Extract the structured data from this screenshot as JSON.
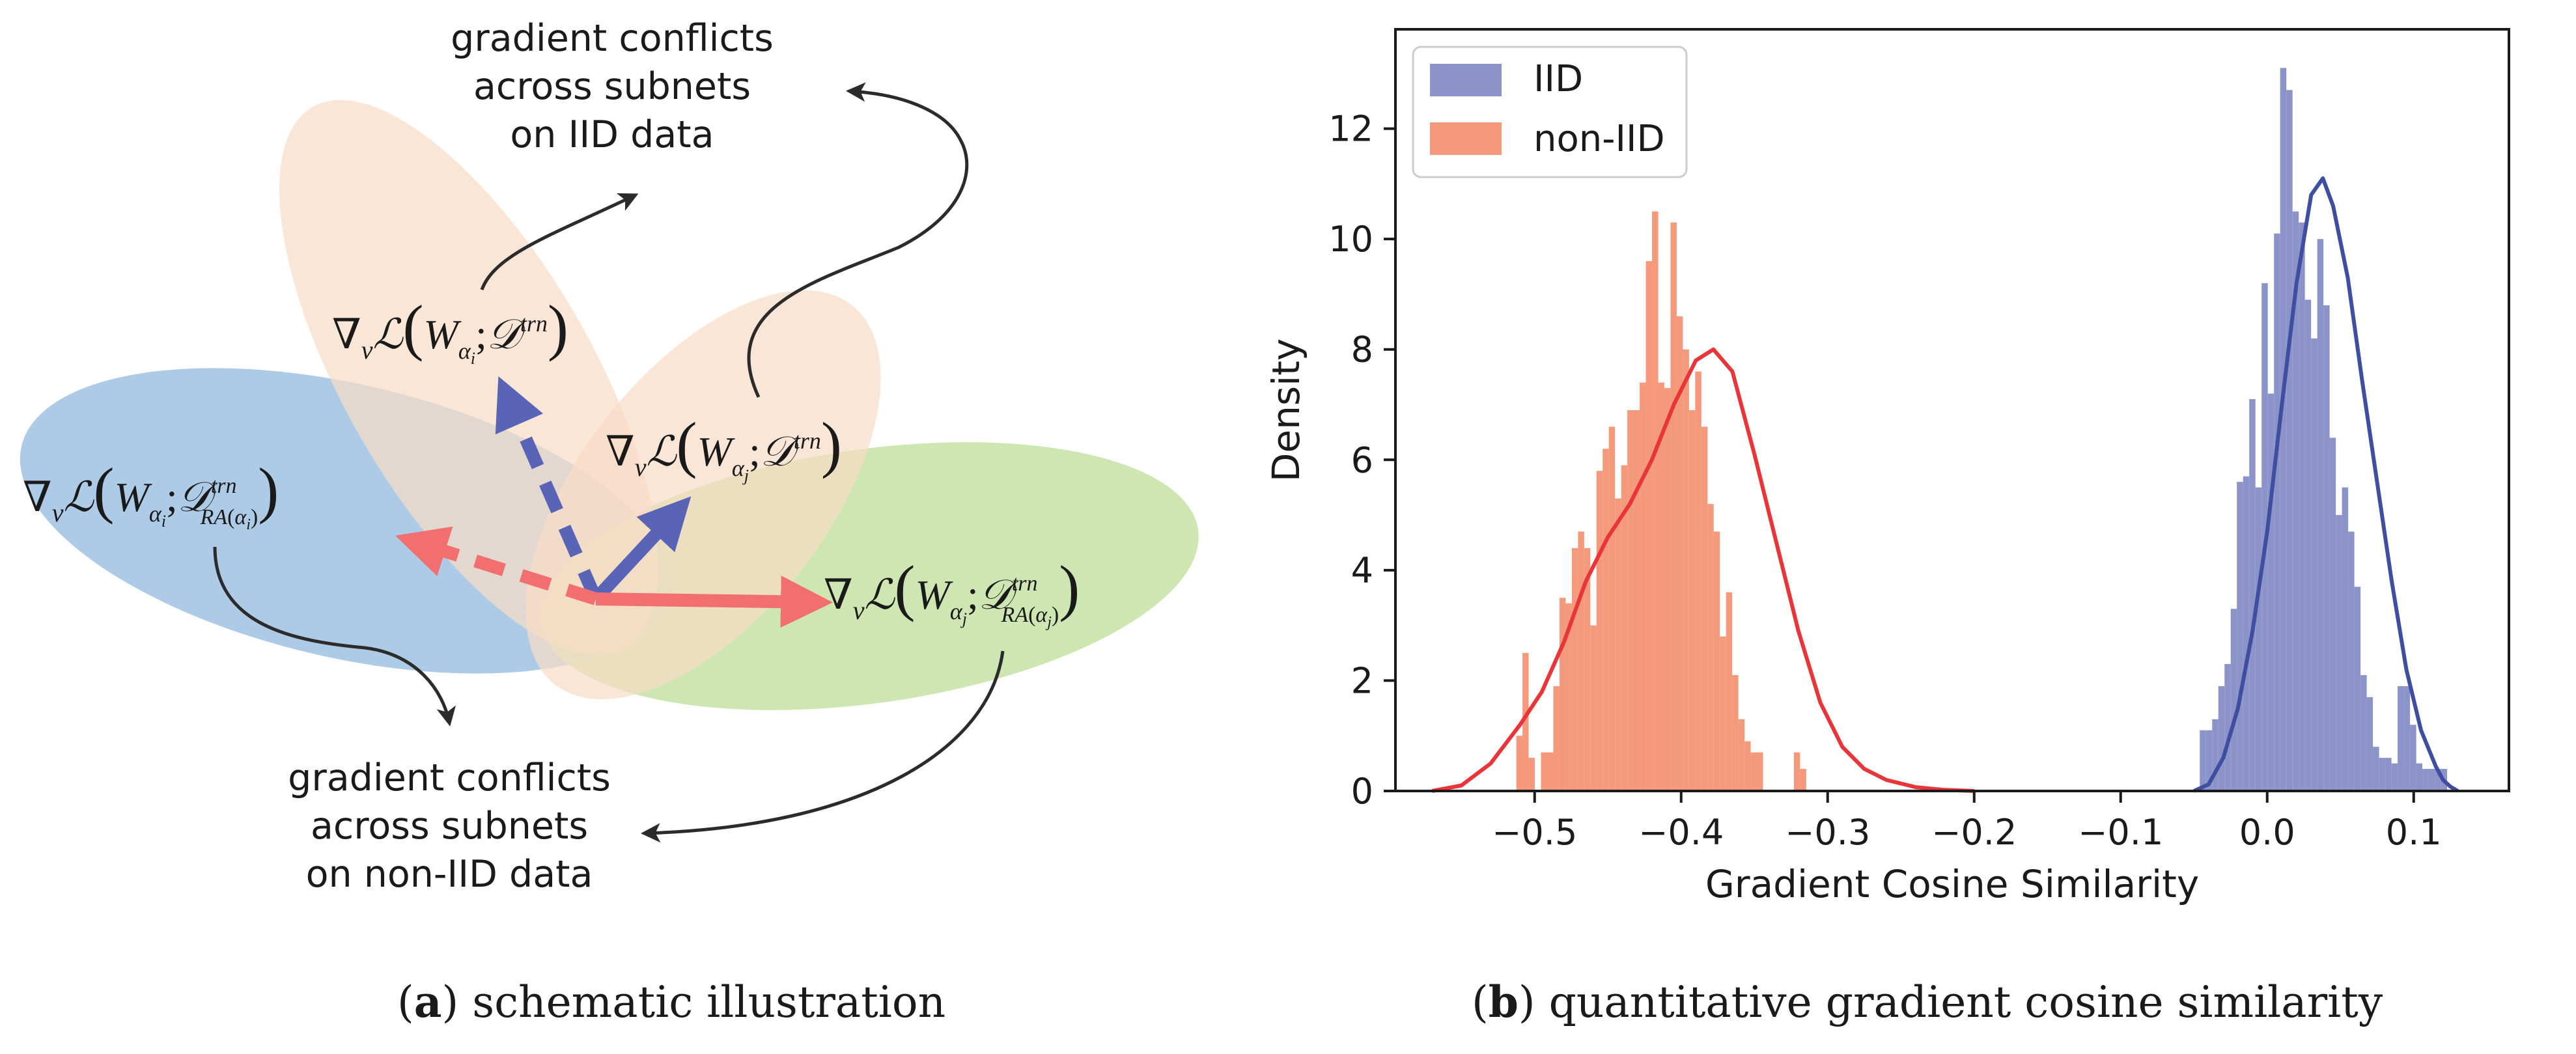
{
  "panel_a": {
    "caption_prefix": "a",
    "caption_text": "schematic illustration",
    "annotation_top": [
      "gradient conflicts",
      "across subnets",
      "on IID data"
    ],
    "annotation_bottom": [
      "gradient conflicts",
      "across subnets",
      "on non-IID data"
    ],
    "math": {
      "nabla": "∇",
      "v": "v",
      "L": "ℒ",
      "W": "W",
      "alpha": "α",
      "i": "i",
      "j": "j",
      "D": "𝒟",
      "trn": "trn",
      "RA": "RA",
      "semicolon": ";"
    },
    "colors": {
      "blue_ellipse": "#a9c8e6",
      "peach_ellipse": "#f8dcc6",
      "green_ellipse": "#c9e3a8",
      "blue_arrow": "#5a64b7",
      "red_arrow": "#f26f6f"
    }
  },
  "panel_b": {
    "caption_prefix": "b",
    "caption_text": "quantitative gradient cosine similarity"
  },
  "chart_data": {
    "type": "histogram",
    "title": "",
    "xlabel": "Gradient Cosine Similarity",
    "ylabel": "Density",
    "xlim": [
      -0.595,
      0.165
    ],
    "ylim": [
      0,
      13.8
    ],
    "xticks": [
      -0.5,
      -0.4,
      -0.3,
      -0.2,
      -0.1,
      0.0,
      0.1
    ],
    "xtick_labels": [
      "−0.5",
      "−0.4",
      "−0.3",
      "−0.2",
      "−0.1",
      "0.0",
      "0.1"
    ],
    "yticks": [
      0,
      2,
      4,
      6,
      8,
      10,
      12
    ],
    "ytick_labels": [
      "0",
      "2",
      "4",
      "6",
      "8",
      "10",
      "12"
    ],
    "legend": {
      "location": "upper-left",
      "entries": [
        "IID",
        "non-IID"
      ]
    },
    "series": [
      {
        "name": "non-IID",
        "bar_color": "#f4997b",
        "kde_color": "#e8353a",
        "bin_start": -0.5125,
        "bin_width": 0.00421,
        "densities": [
          1.0,
          2.5,
          0.6,
          0.0,
          0.7,
          0.7,
          1.9,
          3.5,
          3.4,
          4.4,
          4.7,
          4.4,
          3.0,
          5.8,
          6.2,
          6.6,
          5.3,
          5.9,
          6.9,
          6.9,
          7.4,
          9.6,
          10.5,
          7.4,
          7.3,
          10.3,
          8.6,
          8.0,
          6.9,
          7.6,
          6.6,
          5.2,
          4.7,
          2.8,
          3.6,
          2.1,
          1.3,
          0.9,
          0.7,
          0.7,
          0.0,
          0.0,
          0.0,
          0.0,
          0.0,
          0.7,
          0.4
        ],
        "kde_x": [
          -0.57,
          -0.55,
          -0.53,
          -0.51,
          -0.495,
          -0.48,
          -0.465,
          -0.45,
          -0.435,
          -0.42,
          -0.405,
          -0.39,
          -0.378,
          -0.365,
          -0.35,
          -0.335,
          -0.32,
          -0.305,
          -0.29,
          -0.275,
          -0.26,
          -0.24,
          -0.22,
          -0.2
        ],
        "kde_y": [
          0.0,
          0.1,
          0.5,
          1.2,
          1.8,
          2.7,
          3.8,
          4.6,
          5.2,
          6.0,
          7.0,
          7.8,
          8.0,
          7.6,
          6.1,
          4.5,
          2.9,
          1.6,
          0.8,
          0.4,
          0.2,
          0.07,
          0.02,
          0.0
        ]
      },
      {
        "name": "IID",
        "bar_color": "#8c93c9",
        "kde_color": "#3f4ea1",
        "bin_start": -0.046,
        "bin_width": 0.00422,
        "densities": [
          1.1,
          1.1,
          1.3,
          1.9,
          2.3,
          3.3,
          5.6,
          5.7,
          7.1,
          5.5,
          9.2,
          7.2,
          10.1,
          13.1,
          12.7,
          10.5,
          10.3,
          8.9,
          8.2,
          10.0,
          8.8,
          6.4,
          5.0,
          5.5,
          4.7,
          3.7,
          2.1,
          1.7,
          0.8,
          0.6,
          0.6,
          0.5,
          1.9,
          1.9,
          1.2,
          0.5,
          0.4,
          0.4,
          0.4,
          0.4
        ],
        "kde_x": [
          -0.05,
          -0.04,
          -0.03,
          -0.02,
          -0.01,
          0.0,
          0.01,
          0.02,
          0.03,
          0.038,
          0.045,
          0.055,
          0.065,
          0.075,
          0.085,
          0.095,
          0.105,
          0.115,
          0.12,
          0.125,
          0.13
        ],
        "kde_y": [
          0.0,
          0.12,
          0.6,
          1.5,
          2.9,
          4.7,
          7.0,
          9.2,
          10.8,
          11.1,
          10.6,
          9.3,
          7.4,
          5.6,
          3.8,
          2.2,
          1.1,
          0.45,
          0.2,
          0.08,
          0.0
        ]
      }
    ]
  }
}
